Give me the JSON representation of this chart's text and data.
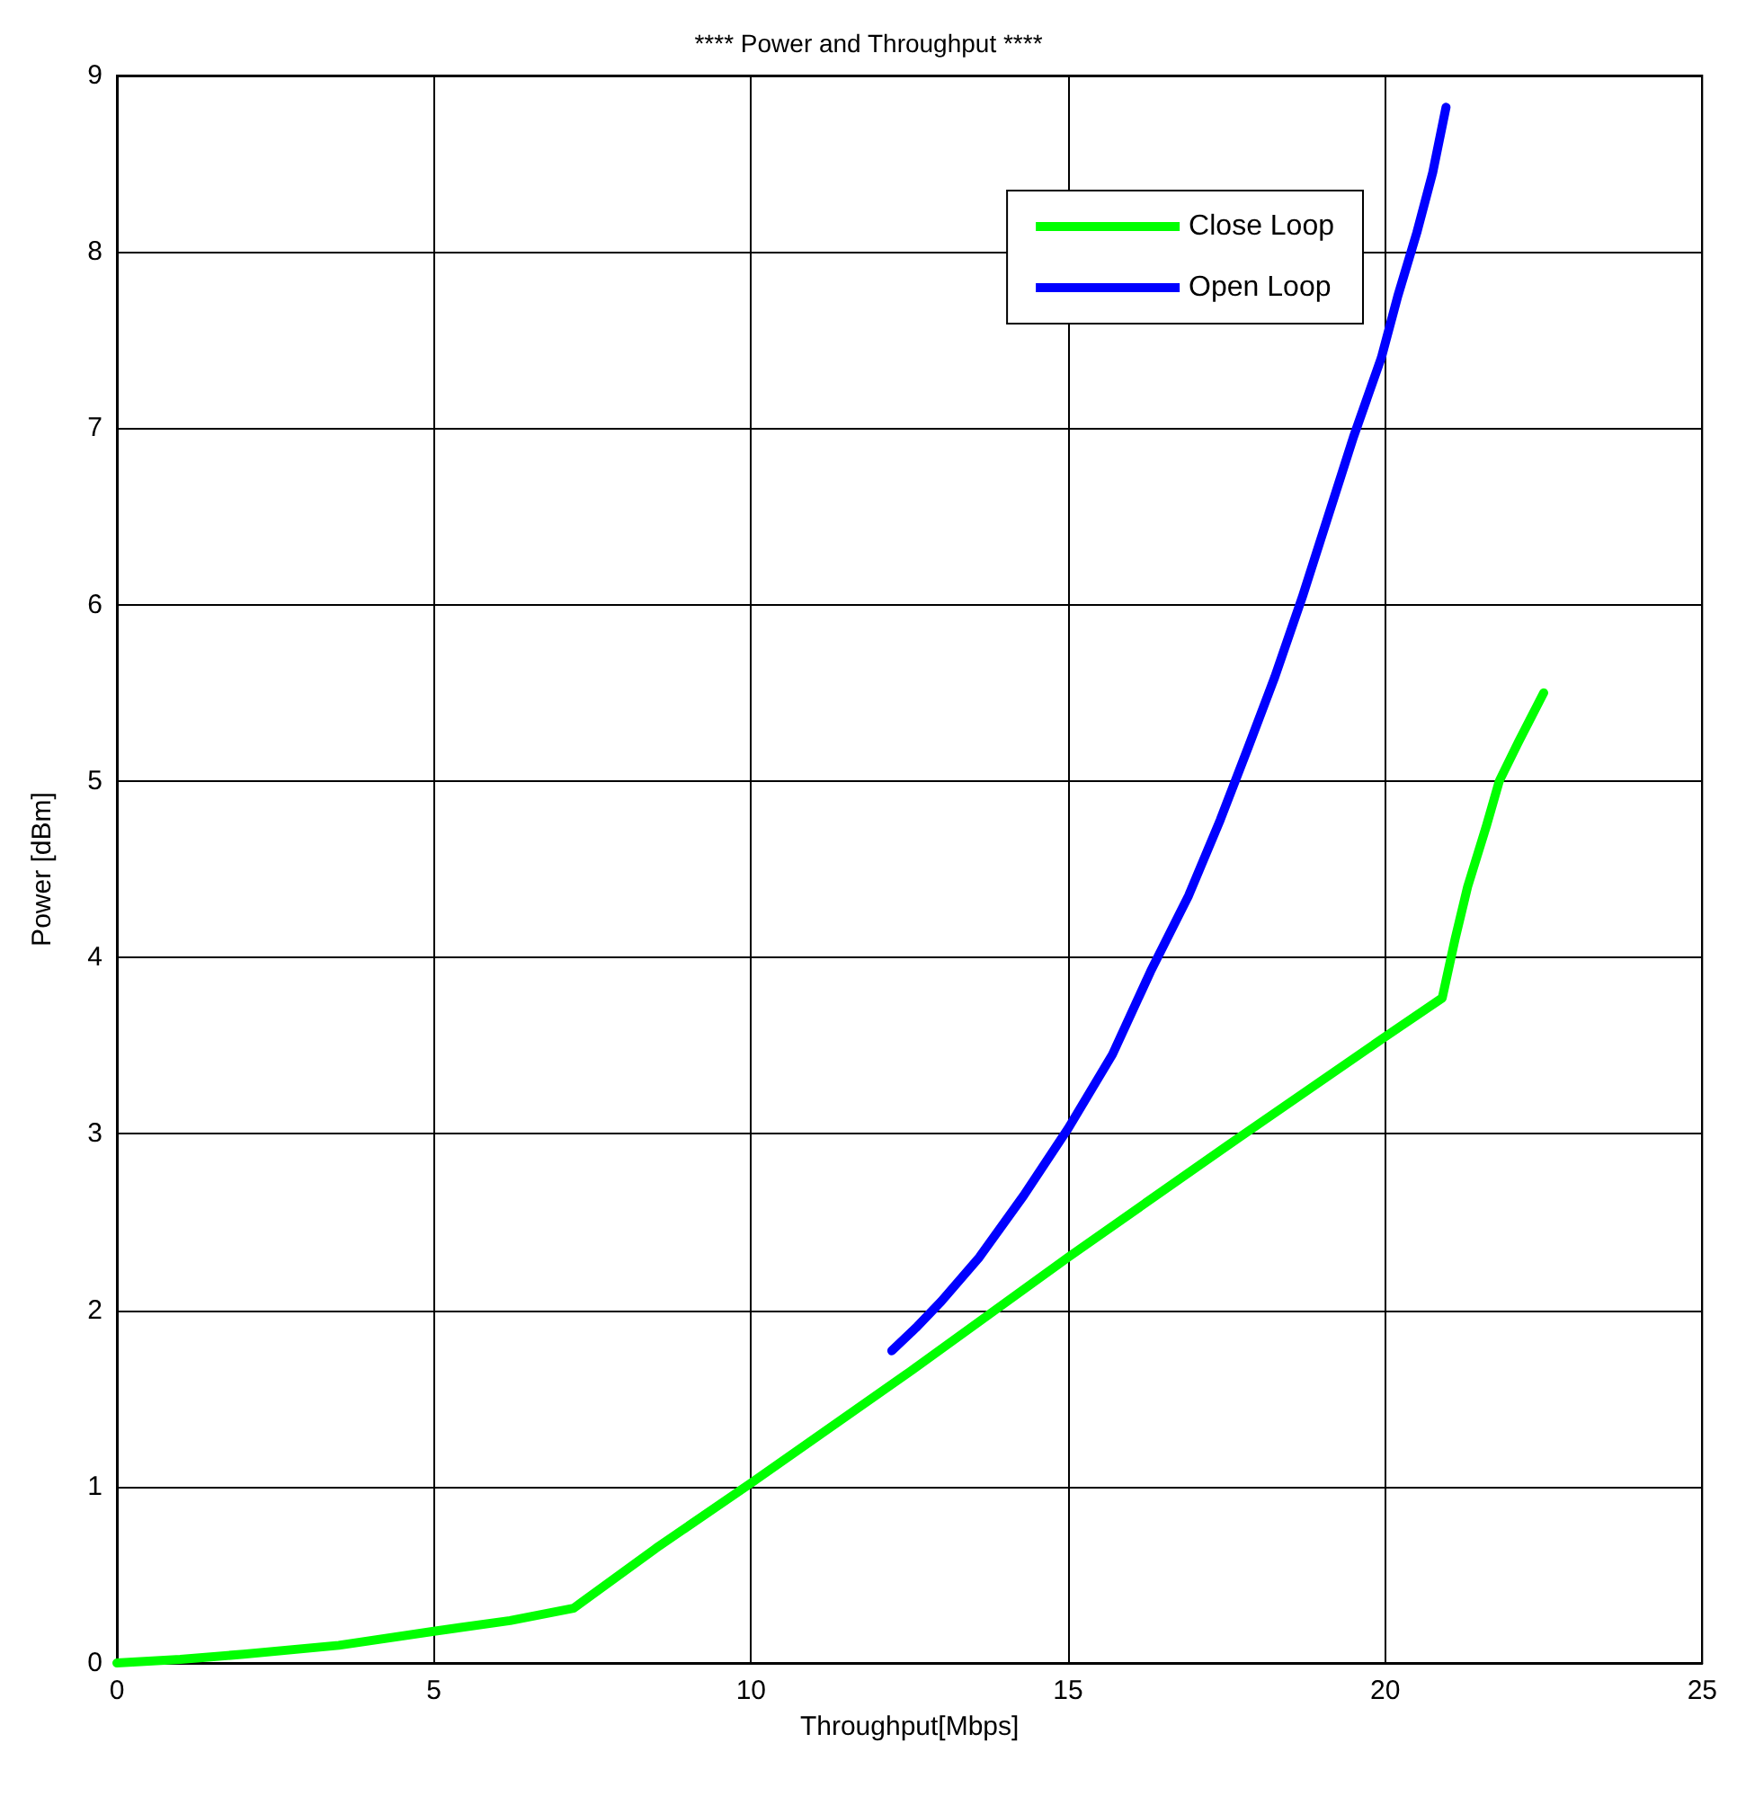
{
  "chart_data": {
    "type": "line",
    "title": "**** Power and Throughput ****",
    "xlabel": "Throughput[Mbps]",
    "ylabel": "Power [dBm]",
    "series": [
      {
        "name": "Close Loop",
        "color": "#00ff00",
        "x": [
          0,
          1,
          2,
          3.5,
          5,
          6.2,
          7.2,
          8.5,
          10,
          12.5,
          15,
          17.5,
          20,
          20.9,
          21.1,
          21.3,
          21.6,
          21.8,
          22.1,
          22.5
        ],
        "values": [
          0,
          0.02,
          0.05,
          0.1,
          0.18,
          0.24,
          0.31,
          0.65,
          1.02,
          1.65,
          2.3,
          2.93,
          3.55,
          3.77,
          4.1,
          4.4,
          4.75,
          5.0,
          5.22,
          5.5
        ]
      },
      {
        "name": "Open Loop",
        "color": "#0000ff",
        "x": [
          12.22,
          12.6,
          13,
          13.6,
          14.3,
          15,
          15.7,
          16.3,
          16.9,
          17.4,
          17.85,
          18.26,
          18.7,
          19.1,
          19.5,
          19.94,
          20.2,
          20.5,
          20.75,
          20.96
        ],
        "values": [
          1.77,
          1.9,
          2.05,
          2.3,
          2.65,
          3.03,
          3.45,
          3.92,
          4.35,
          4.78,
          5.2,
          5.59,
          6.05,
          6.5,
          6.95,
          7.4,
          7.75,
          8.11,
          8.45,
          8.82
        ]
      }
    ],
    "xlim": [
      0,
      25
    ],
    "xticks": [
      0,
      5,
      10,
      15,
      20,
      25
    ],
    "ylim": [
      0,
      9
    ],
    "yticks": [
      0,
      1,
      2,
      3,
      4,
      5,
      6,
      7,
      8,
      9
    ],
    "grid": true,
    "legend": "top right",
    "marker": "none",
    "line_style": "solid"
  }
}
